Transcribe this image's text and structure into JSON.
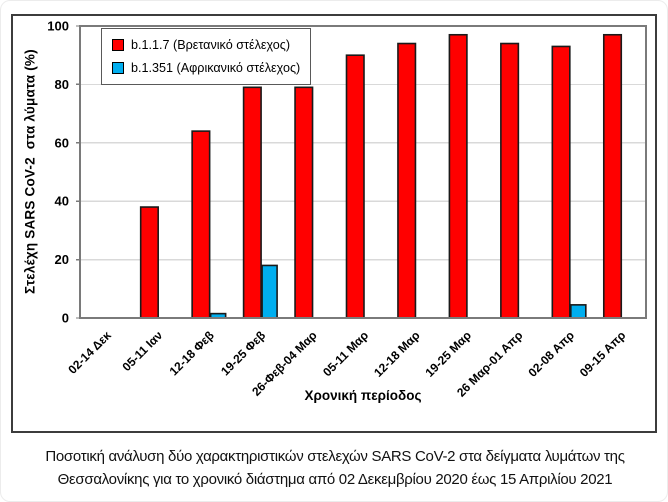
{
  "chart_data": {
    "type": "bar",
    "title": "",
    "xlabel": "Χρονική περίοδος",
    "ylabel": "Στελέχη SARS CoV-2  στα λύματα (%)",
    "categories": [
      "02-14 Δεκ",
      "05-11 Ιαν",
      "12-18 Φεβ",
      "19-25 Φεβ",
      "26-Φεβ-04 Μαρ",
      "05-11 Μαρ",
      "12-18 Μαρ",
      "19-25 Μαρ",
      "26 Μαρ-01 Απρ",
      "02-08 Απρ",
      "09-15 Απρ"
    ],
    "series": [
      {
        "name": "b.1.1.7 (Βρετανικό στέλεχος)",
        "color": "#ff0000",
        "values": [
          0,
          38,
          64,
          79,
          79,
          90,
          94,
          97,
          94,
          93,
          97
        ]
      },
      {
        "name": "b.1.351 (Αφρικανικό στέλεχος)",
        "color": "#00aeef",
        "values": [
          0,
          0,
          1.5,
          18,
          0,
          0,
          0,
          0,
          0,
          4.5,
          0
        ]
      }
    ],
    "ylim": [
      0,
      100
    ],
    "yticks": [
      0,
      20,
      40,
      60,
      80,
      100
    ],
    "grid": true,
    "legend_position": "top-left",
    "colors": {
      "bar_outline": "#1a1a1a",
      "plot_frame": "#7a7a7a",
      "gridline": "#d9d9d9",
      "figure_border": "#3c3c3c"
    }
  },
  "caption": {
    "line1": "Ποσοτική ανάλυση δύο χαρακτηριστικών στελεχών SARS CoV-2 στα δείγματα λυμάτων της",
    "line2": "Θεσσαλονίκης για το χρονικό διάστημα από 02 Δεκεμβρίου 2020 έως 15 Απριλίου 2021"
  }
}
